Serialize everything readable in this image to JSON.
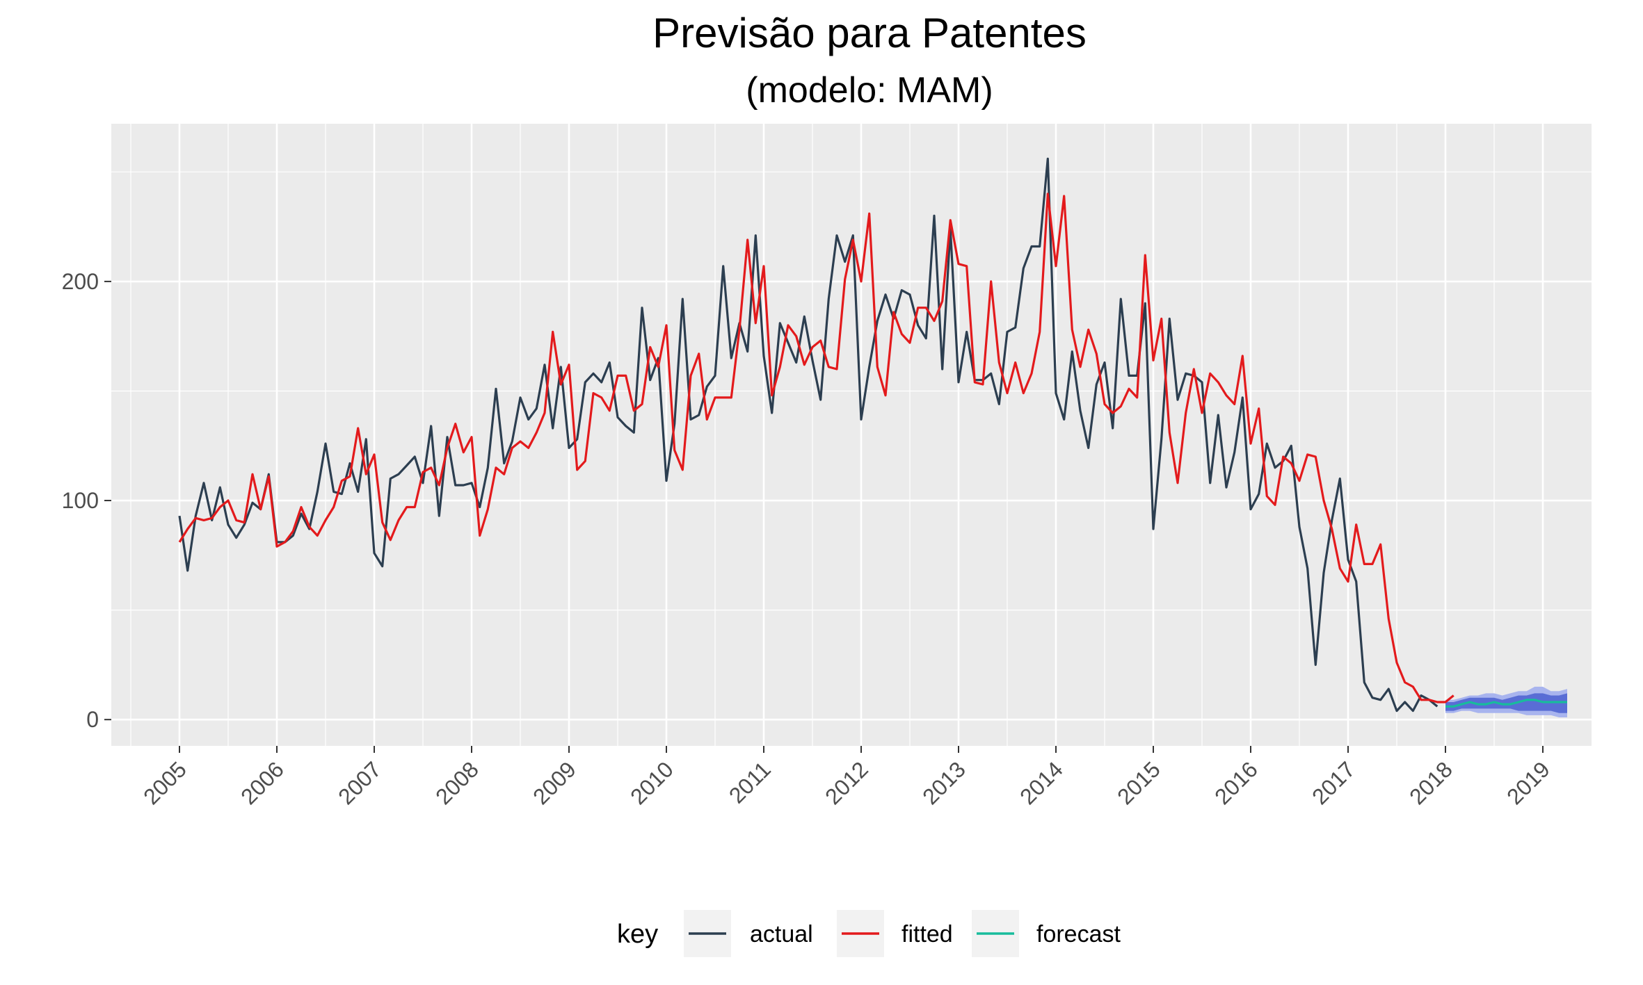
{
  "chart_data": {
    "type": "line",
    "title": "Previsão para Patentes",
    "subtitle": "(modelo: MAM)",
    "xlabel": "",
    "ylabel": "",
    "x_start": 2005,
    "x_step": 0.0833333,
    "xlim": [
      2004.3,
      2019.5
    ],
    "ylim": [
      -12,
      272
    ],
    "x_ticks": [
      "2005",
      "2006",
      "2007",
      "2008",
      "2009",
      "2010",
      "2011",
      "2012",
      "2013",
      "2014",
      "2015",
      "2016",
      "2017",
      "2018",
      "2019"
    ],
    "y_ticks": [
      "0",
      "100",
      "200"
    ],
    "y_tick_values": [
      0,
      100,
      200
    ],
    "legend_title": "key",
    "legend_position": "bottom",
    "grid": true,
    "colors": {
      "actual": "#2c3e50",
      "fitted": "#e31a1c",
      "forecast": "#18bc9c",
      "band80": "#596dd5",
      "band95": "#a8b4ee",
      "panel": "#ebebeb",
      "grid": "#ffffff"
    },
    "series": [
      {
        "name": "actual",
        "values": [
          93,
          68,
          93,
          108,
          91,
          106,
          89,
          83,
          89,
          99,
          96,
          112,
          81,
          81,
          84,
          94,
          87,
          104,
          126,
          104,
          103,
          117,
          104,
          128,
          76,
          70,
          110,
          112,
          116,
          120,
          108,
          134,
          93,
          129,
          107,
          107,
          108,
          97,
          115,
          151,
          117,
          127,
          147,
          137,
          142,
          162,
          133,
          161,
          124,
          128,
          154,
          158,
          154,
          163,
          138,
          134,
          131,
          188,
          155,
          165,
          109,
          135,
          192,
          137,
          139,
          152,
          157,
          207,
          165,
          181,
          168,
          221,
          166,
          140,
          181,
          172,
          163,
          184,
          164,
          146,
          192,
          221,
          209,
          221,
          137,
          161,
          182,
          194,
          183,
          196,
          194,
          180,
          174,
          230,
          160,
          224,
          154,
          177,
          155,
          155,
          158,
          144,
          177,
          179,
          206,
          216,
          216,
          256,
          149,
          137,
          168,
          141,
          124,
          153,
          163,
          133,
          192,
          157,
          157,
          190,
          87,
          128,
          183,
          146,
          158,
          157,
          154,
          108,
          139,
          106,
          122,
          147,
          96,
          103,
          126,
          115,
          118,
          125,
          88,
          69,
          25,
          67,
          91,
          110,
          73,
          63,
          17,
          10,
          9,
          14,
          4,
          8,
          4,
          11,
          9,
          6
        ],
        "color": "#2c3e50"
      },
      {
        "name": "fitted",
        "values": [
          81,
          87,
          92,
          91,
          92,
          97,
          100,
          91,
          90,
          112,
          96,
          111,
          79,
          81,
          86,
          97,
          88,
          84,
          91,
          97,
          109,
          111,
          133,
          112,
          121,
          90,
          82,
          91,
          97,
          97,
          113,
          115,
          107,
          124,
          135,
          122,
          129,
          84,
          96,
          115,
          112,
          124,
          127,
          124,
          131,
          140,
          177,
          153,
          162,
          114,
          118,
          149,
          147,
          141,
          157,
          157,
          141,
          144,
          170,
          161,
          180,
          123,
          114,
          157,
          167,
          137,
          147,
          147,
          147,
          178,
          219,
          181,
          207,
          148,
          161,
          180,
          175,
          162,
          170,
          173,
          161,
          160,
          201,
          219,
          200,
          231,
          161,
          148,
          186,
          176,
          172,
          188,
          188,
          182,
          191,
          228,
          208,
          207,
          154,
          153,
          200,
          163,
          149,
          163,
          149,
          158,
          177,
          240,
          207,
          239,
          178,
          161,
          178,
          167,
          144,
          140,
          143,
          151,
          147,
          212,
          164,
          183,
          131,
          108,
          140,
          160,
          140,
          158,
          154,
          148,
          144,
          166,
          126,
          142,
          102,
          98,
          120,
          117,
          109,
          121,
          120,
          100,
          87,
          69,
          63,
          89,
          71,
          71,
          80,
          46,
          26,
          17,
          15,
          9,
          9,
          8,
          8,
          11
        ],
        "color": "#e31a1c"
      },
      {
        "name": "forecast",
        "x_start": 2018.0,
        "values": [
          6,
          6,
          7,
          8,
          7,
          7,
          8,
          7,
          7,
          8,
          9,
          9,
          8,
          8,
          8,
          8
        ],
        "color": "#18bc9c"
      }
    ],
    "forecast_bands": {
      "lo80": [
        4,
        4,
        5,
        5,
        5,
        5,
        5,
        5,
        5,
        4,
        4,
        4,
        4,
        4,
        3,
        3
      ],
      "hi80": [
        8,
        8,
        9,
        10,
        10,
        10,
        10,
        9,
        10,
        11,
        11,
        12,
        12,
        11,
        11,
        12
      ],
      "lo95": [
        3,
        3,
        4,
        4,
        3,
        3,
        3,
        3,
        3,
        3,
        2,
        2,
        2,
        2,
        1,
        1
      ],
      "hi95": [
        9,
        9,
        10,
        11,
        11,
        12,
        12,
        11,
        12,
        13,
        13,
        15,
        15,
        13,
        13,
        14
      ]
    }
  }
}
